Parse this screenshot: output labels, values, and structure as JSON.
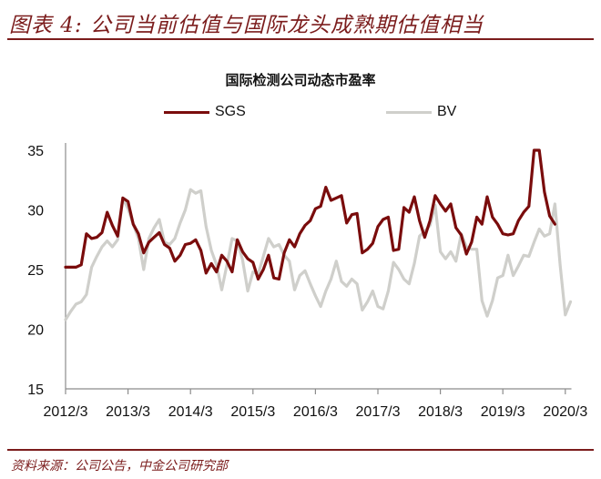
{
  "header": {
    "figure_title": "图表 4:  公司当前估值与国际龙头成熟期估值相当"
  },
  "footer": {
    "source": "资料来源：公司公告，中金公司研究部"
  },
  "colors": {
    "accent": "#7b1c1c",
    "sgs": "#7a0c0c",
    "bv": "#cfcfcb",
    "axis": "#8c8c8c"
  },
  "chart_data": {
    "type": "line",
    "title": "国际检测公司动态市盈率",
    "xlabel": "",
    "ylabel": "",
    "ylim": [
      15,
      35
    ],
    "yticks": [
      15,
      20,
      25,
      30,
      35
    ],
    "xticks": [
      "2012/3",
      "2013/3",
      "2014/3",
      "2015/3",
      "2016/3",
      "2017/3",
      "2018/3",
      "2019/3",
      "2020/3"
    ],
    "x_unit": "months since 2012/3",
    "x_range": [
      0,
      97
    ],
    "grid": false,
    "legend_position": "top",
    "series": [
      {
        "name": "SGS",
        "color": "#7a0c0c",
        "points": [
          [
            0,
            25.2
          ],
          [
            2,
            25.2
          ],
          [
            3,
            25.4
          ],
          [
            4,
            28.0
          ],
          [
            5,
            27.6
          ],
          [
            6,
            27.7
          ],
          [
            7,
            28.1
          ],
          [
            8,
            29.8
          ],
          [
            9,
            28.7
          ],
          [
            10,
            27.8
          ],
          [
            11,
            31.0
          ],
          [
            12,
            30.7
          ],
          [
            13,
            28.8
          ],
          [
            14,
            28.0
          ],
          [
            15,
            26.4
          ],
          [
            16,
            27.3
          ],
          [
            17,
            27.7
          ],
          [
            18,
            28.1
          ],
          [
            19,
            27.1
          ],
          [
            20,
            26.8
          ],
          [
            21,
            25.7
          ],
          [
            22,
            26.2
          ],
          [
            23,
            27.1
          ],
          [
            24,
            27.2
          ],
          [
            25,
            27.5
          ],
          [
            26,
            26.6
          ],
          [
            27,
            24.7
          ],
          [
            28,
            25.5
          ],
          [
            29,
            24.8
          ],
          [
            30,
            26.2
          ],
          [
            31,
            25.7
          ],
          [
            32,
            24.8
          ],
          [
            33,
            27.5
          ],
          [
            34,
            26.5
          ],
          [
            35,
            25.9
          ],
          [
            36,
            25.6
          ],
          [
            37,
            24.2
          ],
          [
            38,
            25.0
          ],
          [
            39,
            26.2
          ],
          [
            40,
            24.3
          ],
          [
            41,
            24.2
          ],
          [
            42,
            26.4
          ],
          [
            43,
            27.5
          ],
          [
            44,
            26.9
          ],
          [
            45,
            28.0
          ],
          [
            46,
            28.7
          ],
          [
            47,
            29.1
          ],
          [
            48,
            30.1
          ],
          [
            49,
            30.3
          ],
          [
            50,
            31.9
          ],
          [
            51,
            30.8
          ],
          [
            52,
            31.0
          ],
          [
            53,
            31.2
          ],
          [
            54,
            28.9
          ],
          [
            55,
            29.6
          ],
          [
            56,
            29.7
          ],
          [
            57,
            26.4
          ],
          [
            58,
            26.7
          ],
          [
            59,
            27.2
          ],
          [
            60,
            28.6
          ],
          [
            61,
            29.2
          ],
          [
            62,
            29.4
          ],
          [
            63,
            26.6
          ],
          [
            64,
            26.7
          ],
          [
            65,
            30.2
          ],
          [
            66,
            29.8
          ],
          [
            67,
            31.1
          ],
          [
            68,
            29.1
          ],
          [
            69,
            27.7
          ],
          [
            70,
            29.1
          ],
          [
            71,
            31.2
          ],
          [
            72,
            30.5
          ],
          [
            73,
            29.9
          ],
          [
            74,
            30.5
          ],
          [
            75,
            28.5
          ],
          [
            76,
            27.9
          ],
          [
            77,
            26.3
          ],
          [
            78,
            27.3
          ],
          [
            79,
            29.4
          ],
          [
            80,
            28.8
          ],
          [
            81,
            31.1
          ],
          [
            82,
            29.4
          ],
          [
            83,
            28.8
          ],
          [
            84,
            28.0
          ],
          [
            85,
            27.9
          ],
          [
            86,
            28.0
          ],
          [
            87,
            29.1
          ],
          [
            88,
            29.8
          ],
          [
            89,
            30.3
          ],
          [
            90,
            35.0
          ],
          [
            91,
            35.0
          ],
          [
            92,
            31.5
          ],
          [
            93,
            29.5
          ],
          [
            94,
            28.8
          ]
        ]
      },
      {
        "name": "BV",
        "color": "#cfcfcb",
        "points": [
          [
            0,
            20.8
          ],
          [
            1,
            21.5
          ],
          [
            2,
            22.1
          ],
          [
            3,
            22.3
          ],
          [
            4,
            22.9
          ],
          [
            5,
            25.2
          ],
          [
            6,
            26.1
          ],
          [
            7,
            26.9
          ],
          [
            8,
            27.4
          ],
          [
            9,
            26.9
          ],
          [
            10,
            27.5
          ],
          [
            11,
            31.0
          ],
          [
            12,
            30.1
          ],
          [
            13,
            28.8
          ],
          [
            14,
            27.6
          ],
          [
            15,
            25.0
          ],
          [
            16,
            27.6
          ],
          [
            17,
            28.5
          ],
          [
            18,
            29.2
          ],
          [
            19,
            27.3
          ],
          [
            20,
            27.1
          ],
          [
            21,
            27.6
          ],
          [
            22,
            28.9
          ],
          [
            23,
            30.0
          ],
          [
            24,
            31.7
          ],
          [
            25,
            31.4
          ],
          [
            26,
            31.6
          ],
          [
            27,
            28.6
          ],
          [
            28,
            26.6
          ],
          [
            29,
            25.4
          ],
          [
            30,
            23.3
          ],
          [
            31,
            25.4
          ],
          [
            32,
            27.6
          ],
          [
            33,
            27.4
          ],
          [
            34,
            25.8
          ],
          [
            35,
            23.2
          ],
          [
            36,
            24.8
          ],
          [
            37,
            24.6
          ],
          [
            38,
            26.1
          ],
          [
            39,
            27.6
          ],
          [
            40,
            26.9
          ],
          [
            41,
            27.1
          ],
          [
            42,
            26.2
          ],
          [
            43,
            25.7
          ],
          [
            44,
            23.3
          ],
          [
            45,
            24.5
          ],
          [
            46,
            24.9
          ],
          [
            47,
            23.8
          ],
          [
            48,
            22.8
          ],
          [
            49,
            21.9
          ],
          [
            50,
            23.2
          ],
          [
            51,
            24.2
          ],
          [
            52,
            25.7
          ],
          [
            53,
            24.0
          ],
          [
            54,
            23.6
          ],
          [
            55,
            24.2
          ],
          [
            56,
            23.8
          ],
          [
            57,
            21.6
          ],
          [
            58,
            22.3
          ],
          [
            59,
            23.2
          ],
          [
            60,
            21.9
          ],
          [
            61,
            21.7
          ],
          [
            62,
            23.2
          ],
          [
            63,
            25.6
          ],
          [
            64,
            25.0
          ],
          [
            65,
            24.2
          ],
          [
            66,
            23.8
          ],
          [
            67,
            25.5
          ],
          [
            68,
            27.8
          ],
          [
            69,
            28.2
          ],
          [
            70,
            28.7
          ],
          [
            71,
            30.4
          ],
          [
            72,
            26.5
          ],
          [
            73,
            25.9
          ],
          [
            74,
            26.5
          ],
          [
            75,
            25.7
          ],
          [
            76,
            28.0
          ],
          [
            77,
            26.9
          ],
          [
            78,
            26.7
          ],
          [
            79,
            26.7
          ],
          [
            80,
            22.4
          ],
          [
            81,
            21.1
          ],
          [
            82,
            22.4
          ],
          [
            83,
            24.3
          ],
          [
            84,
            24.5
          ],
          [
            85,
            26.2
          ],
          [
            86,
            24.5
          ],
          [
            87,
            25.3
          ],
          [
            88,
            26.2
          ],
          [
            89,
            26.1
          ],
          [
            90,
            27.3
          ],
          [
            91,
            28.4
          ],
          [
            92,
            27.8
          ],
          [
            93,
            28.0
          ],
          [
            94,
            30.5
          ],
          [
            95,
            25.4
          ],
          [
            96,
            21.2
          ],
          [
            97,
            22.3
          ]
        ]
      }
    ]
  }
}
